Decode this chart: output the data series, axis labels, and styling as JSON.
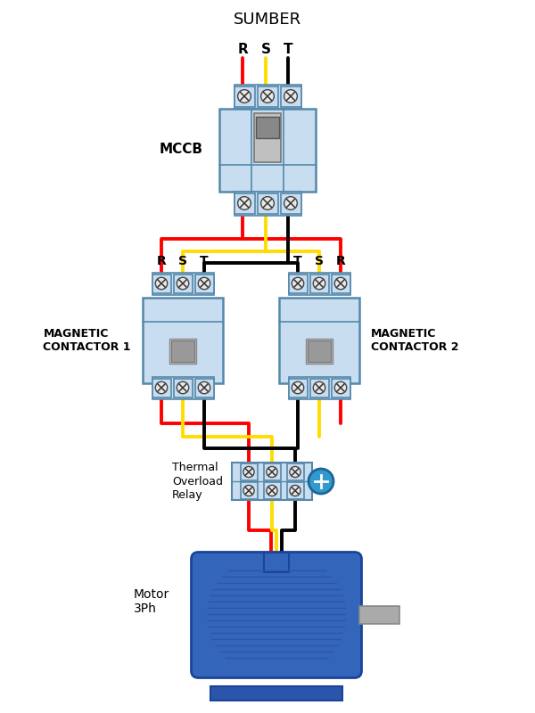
{
  "bg_color": "#ffffff",
  "comp_fill": "#c8ddf0",
  "comp_edge": "#5588aa",
  "wire_red": "#ff0000",
  "wire_yellow": "#ffdd00",
  "wire_black": "#000000",
  "motor_color": "#3366bb",
  "motor_dark": "#1e4499",
  "motor_stripe": "#2a55aa",
  "shaft_color": "#aaaaaa",
  "source_label": "SUMBER",
  "mccb_label": "MCCB",
  "c1_label": "MAGNETIC\nCONTACTOR 1",
  "c2_label": "MAGNETIC\nCONTACTOR 2",
  "relay_label": "Thermal\nOverload\nRelay",
  "motor_label": "Motor\n3Ph",
  "phase_top": [
    "R",
    "S",
    "T"
  ],
  "phase_c1": [
    "R",
    "S",
    "T"
  ],
  "phase_c2": [
    "T",
    "S",
    "R"
  ]
}
